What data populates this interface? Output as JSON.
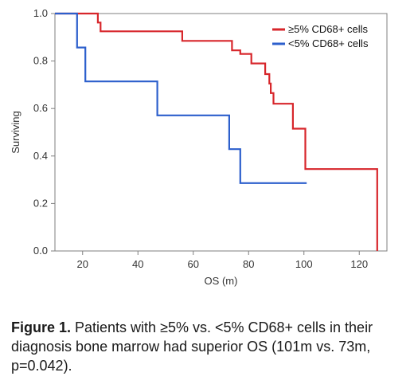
{
  "chart_data": {
    "type": "line",
    "step": true,
    "xlabel": "OS (m)",
    "ylabel": "Surviving",
    "xlim": [
      10,
      130
    ],
    "ylim": [
      0,
      1
    ],
    "xticks": [
      20,
      40,
      60,
      80,
      100,
      120
    ],
    "yticks": [
      0.0,
      0.2,
      0.4,
      0.6,
      0.8,
      1.0
    ],
    "grid": false,
    "legend_position": "top-right",
    "series": [
      {
        "name": "≥5% CD68+ cells",
        "color": "#d7262b",
        "x": [
          0,
          25.5,
          25.5,
          26.5,
          26.5,
          56,
          56,
          74,
          74,
          77,
          77,
          81,
          81,
          86,
          86,
          87.5,
          87.5,
          88,
          88,
          89,
          89,
          96,
          96,
          100.5,
          100.5,
          126.5,
          126.5
        ],
        "y": [
          1.0,
          1.0,
          0.962,
          0.962,
          0.925,
          0.925,
          0.885,
          0.885,
          0.845,
          0.845,
          0.83,
          0.83,
          0.79,
          0.79,
          0.745,
          0.745,
          0.705,
          0.705,
          0.665,
          0.665,
          0.62,
          0.62,
          0.515,
          0.515,
          0.345,
          0.345,
          0.0
        ]
      },
      {
        "name": "<5% CD68+ cells",
        "color": "#2c5fcc",
        "x": [
          0,
          18,
          18,
          21,
          21,
          47,
          47,
          73,
          73,
          77,
          77,
          101
        ],
        "y": [
          1.0,
          1.0,
          0.857,
          0.857,
          0.714,
          0.714,
          0.571,
          0.571,
          0.429,
          0.429,
          0.286,
          0.286
        ]
      }
    ]
  },
  "caption": {
    "label": "Figure 1.",
    "text": " Patients with ≥5% vs. <5% CD68+ cells in their diagnosis bone marrow had superior OS (101m vs. 73m, p=0.042)."
  }
}
